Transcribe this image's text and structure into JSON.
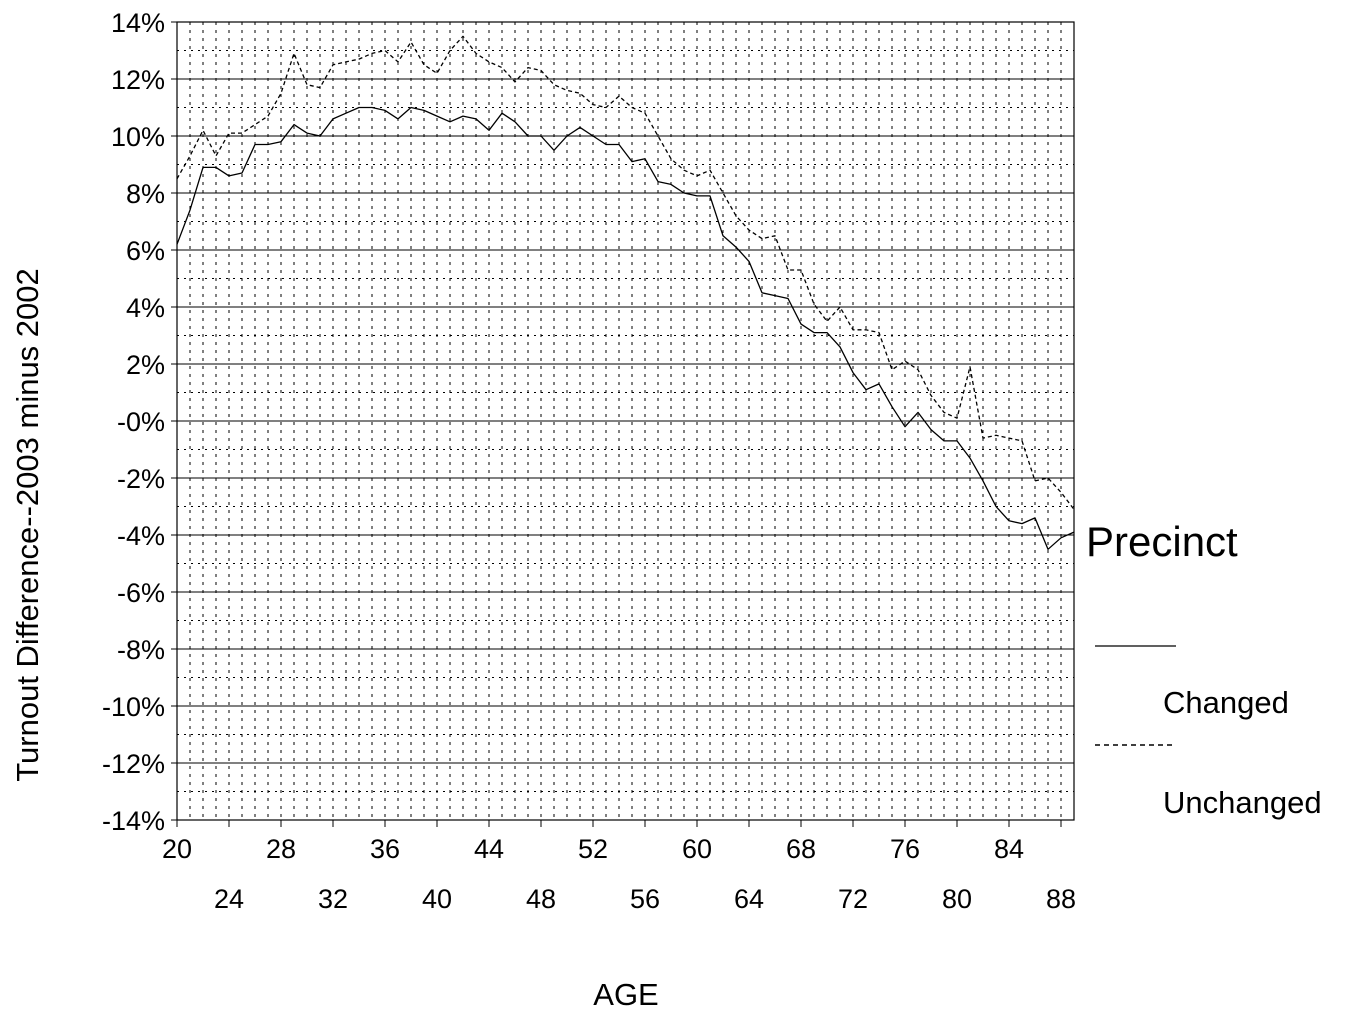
{
  "chart_data": {
    "type": "line",
    "xlabel": "AGE",
    "ylabel": "Turnout Difference--2003 minus 2002",
    "xlim": [
      20,
      89
    ],
    "ylim": [
      -14,
      14
    ],
    "y_ticks": [
      14,
      12,
      10,
      8,
      6,
      4,
      2,
      0,
      -2,
      -4,
      -6,
      -8,
      -10,
      -12,
      -14
    ],
    "y_tick_labels": [
      "14%",
      "12%",
      "10%",
      "8%",
      "6%",
      "4%",
      "2%",
      "-0%",
      "-2%",
      "-4%",
      "-6%",
      "-8%",
      "-10%",
      "-12%",
      "-14%"
    ],
    "x_ticks_row1": [
      "20",
      "28",
      "36",
      "44",
      "52",
      "60",
      "68",
      "76",
      "84"
    ],
    "x_ticks_row2": [
      "24",
      "32",
      "40",
      "48",
      "56",
      "64",
      "72",
      "80",
      "88"
    ],
    "grid": true,
    "legend": {
      "title": "Precinct",
      "position": "right",
      "entries": [
        "Changed",
        "Unchanged"
      ]
    },
    "series": [
      {
        "name": "Changed",
        "style": "solid",
        "x": [
          20,
          21,
          22,
          23,
          24,
          25,
          26,
          27,
          28,
          29,
          30,
          31,
          32,
          33,
          34,
          35,
          36,
          37,
          38,
          39,
          40,
          41,
          42,
          43,
          44,
          45,
          46,
          47,
          48,
          49,
          50,
          51,
          52,
          53,
          54,
          55,
          56,
          57,
          58,
          59,
          60,
          61,
          62,
          63,
          64,
          65,
          66,
          67,
          68,
          69,
          70,
          71,
          72,
          73,
          74,
          75,
          76,
          77,
          78,
          79,
          80,
          81,
          82,
          83,
          84,
          85,
          86,
          87,
          88,
          89
        ],
        "y": [
          6.2,
          7.4,
          8.9,
          8.9,
          8.6,
          8.7,
          9.7,
          9.7,
          9.8,
          10.4,
          10.1,
          10.0,
          10.6,
          10.8,
          11.0,
          11.0,
          10.9,
          10.6,
          11.0,
          10.9,
          10.7,
          10.5,
          10.7,
          10.6,
          10.2,
          10.8,
          10.5,
          10.0,
          10.0,
          9.5,
          10.0,
          10.3,
          10.0,
          9.7,
          9.7,
          9.1,
          9.2,
          8.4,
          8.3,
          8.0,
          7.9,
          7.9,
          6.5,
          6.1,
          5.6,
          4.5,
          4.4,
          4.3,
          3.4,
          3.1,
          3.1,
          2.6,
          1.7,
          1.1,
          1.3,
          0.5,
          -0.2,
          0.3,
          -0.3,
          -0.7,
          -0.7,
          -1.3,
          -2.1,
          -3.0,
          -3.5,
          -3.6,
          -3.4,
          -4.5,
          -4.1,
          -3.9
        ]
      },
      {
        "name": "Unchanged",
        "style": "dashed",
        "x": [
          20,
          21,
          22,
          23,
          24,
          25,
          26,
          27,
          28,
          29,
          30,
          31,
          32,
          33,
          34,
          35,
          36,
          37,
          38,
          39,
          40,
          41,
          42,
          43,
          44,
          45,
          46,
          47,
          48,
          49,
          50,
          51,
          52,
          53,
          54,
          55,
          56,
          57,
          58,
          59,
          60,
          61,
          62,
          63,
          64,
          65,
          66,
          67,
          68,
          69,
          70,
          71,
          72,
          73,
          74,
          75,
          76,
          77,
          78,
          79,
          80,
          81,
          82,
          83,
          84,
          85,
          86,
          87,
          88,
          89
        ],
        "y": [
          8.5,
          9.3,
          10.2,
          9.3,
          10.1,
          10.1,
          10.4,
          10.7,
          11.5,
          12.9,
          11.8,
          11.7,
          12.5,
          12.6,
          12.7,
          12.9,
          13.0,
          12.6,
          13.3,
          12.5,
          12.2,
          13.0,
          13.5,
          12.9,
          12.6,
          12.4,
          11.9,
          12.4,
          12.3,
          11.8,
          11.6,
          11.5,
          11.1,
          11.0,
          11.4,
          11.0,
          10.8,
          10.0,
          9.2,
          8.8,
          8.6,
          8.8,
          8.0,
          7.2,
          6.7,
          6.4,
          6.5,
          5.3,
          5.3,
          4.1,
          3.5,
          4.0,
          3.2,
          3.2,
          3.1,
          1.8,
          2.1,
          1.8,
          0.9,
          0.3,
          0.1,
          1.9,
          -0.6,
          -0.5,
          -0.6,
          -0.7,
          -2.1,
          -2.0,
          -2.5,
          -3.1
        ]
      }
    ]
  }
}
